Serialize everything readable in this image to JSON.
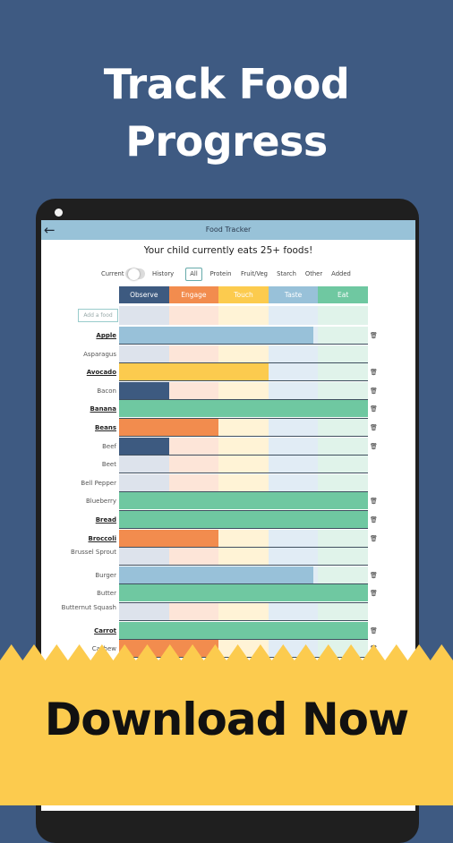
{
  "headline": {
    "line1": "Track Food",
    "line2": "Progress"
  },
  "app": {
    "title": "Food Tracker",
    "back_icon": "arrow-left-icon",
    "summary": "Your child currently eats 25+ foods!",
    "toggle": {
      "left_label": "Current",
      "right_label": "History"
    },
    "filters": [
      "All",
      "Protein",
      "Fruit/Veg",
      "Starch",
      "Other",
      "Added"
    ],
    "active_filter": "All",
    "add_food_placeholder": "Add a food",
    "stages": [
      {
        "label": "Observe",
        "header_color": "#3d5a80",
        "light_color": "#dde3ec"
      },
      {
        "label": "Engage",
        "header_color": "#f28c4e",
        "light_color": "#fde5d8"
      },
      {
        "label": "Touch",
        "header_color": "#fccb4e",
        "light_color": "#fff3d6"
      },
      {
        "label": "Taste",
        "header_color": "#98c1d9",
        "light_color": "#e1ecf5"
      },
      {
        "label": "Eat",
        "header_color": "#6fc8a1",
        "light_color": "#e0f3ea"
      }
    ],
    "foods": [
      {
        "name": "Apple",
        "bold": true,
        "stage": 4,
        "fill": 3.9,
        "trash": true
      },
      {
        "name": "Asparagus",
        "bold": false,
        "stage": 0,
        "fill": 0,
        "trash": false
      },
      {
        "name": "Avocado",
        "bold": true,
        "stage": 3,
        "fill": 3,
        "trash": true
      },
      {
        "name": "Bacon",
        "bold": false,
        "stage": 1,
        "fill": 1,
        "trash": true
      },
      {
        "name": "Banana",
        "bold": true,
        "stage": 5,
        "fill": 5,
        "trash": true
      },
      {
        "name": "Beans",
        "bold": true,
        "stage": 2,
        "fill": 2,
        "trash": true
      },
      {
        "name": "Beef",
        "bold": false,
        "stage": 1,
        "fill": 1,
        "trash": true
      },
      {
        "name": "Beet",
        "bold": false,
        "stage": 0,
        "fill": 0,
        "trash": false
      },
      {
        "name": "Bell Pepper",
        "bold": false,
        "stage": 0,
        "fill": 0,
        "trash": false
      },
      {
        "name": "Blueberry",
        "bold": false,
        "stage": 5,
        "fill": 5,
        "trash": true
      },
      {
        "name": "Bread",
        "bold": true,
        "stage": 5,
        "fill": 5,
        "trash": true
      },
      {
        "name": "Broccoli",
        "bold": true,
        "stage": 2,
        "fill": 2,
        "trash": true
      },
      {
        "name": "Brussel Sprout",
        "bold": false,
        "stage": 0,
        "fill": 0,
        "trash": false
      },
      {
        "name": "Burger",
        "bold": false,
        "stage": 4,
        "fill": 3.9,
        "trash": true
      },
      {
        "name": "Butter",
        "bold": false,
        "stage": 5,
        "fill": 5,
        "trash": true
      },
      {
        "name": "Butternut Squash",
        "bold": false,
        "stage": 0,
        "fill": 0,
        "trash": false
      },
      {
        "name": "Carrot",
        "bold": true,
        "stage": 5,
        "fill": 5,
        "trash": true
      },
      {
        "name": "Cashew",
        "bold": false,
        "stage": 2,
        "fill": 2,
        "trash": true
      }
    ]
  },
  "banner": {
    "text": "Download Now",
    "color": "#fccb4e"
  }
}
